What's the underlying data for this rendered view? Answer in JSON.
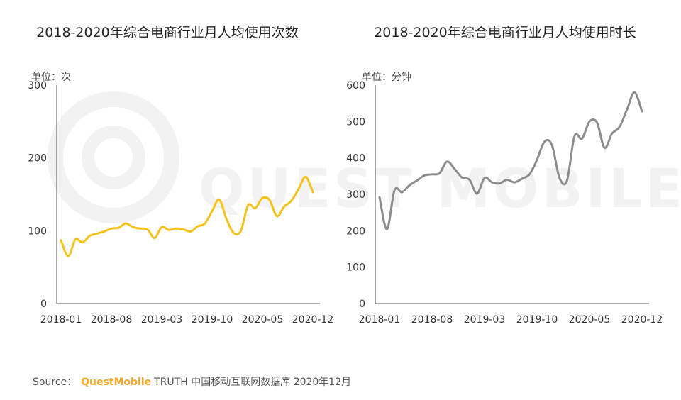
{
  "footer": {
    "source_label": "Source：",
    "brand": "QuestMobile",
    "rest": "TRUTH 中国移动互联网数据库 2020年12月"
  },
  "watermark": {
    "text": "QUEST MOBILE"
  },
  "colors": {
    "left_line": "#f5c21b",
    "right_line": "#8c8c8c",
    "axis": "#555555",
    "text": "#333333",
    "watermark": "#f2f2f2"
  },
  "chart_data": [
    {
      "type": "line",
      "title": "2018-2020年综合电商行业月人均使用次数",
      "ylabel": "单位：次",
      "xlabel": "",
      "ylim": [
        0,
        300
      ],
      "yticks": [
        0,
        100,
        200,
        300
      ],
      "xtick_labels": [
        "2018-01",
        "2018-08",
        "2019-03",
        "2019-10",
        "2020-05",
        "2020-12"
      ],
      "x": [
        "2018-01",
        "2018-02",
        "2018-03",
        "2018-04",
        "2018-05",
        "2018-06",
        "2018-07",
        "2018-08",
        "2018-09",
        "2018-10",
        "2018-11",
        "2018-12",
        "2019-01",
        "2019-02",
        "2019-03",
        "2019-04",
        "2019-05",
        "2019-06",
        "2019-07",
        "2019-08",
        "2019-09",
        "2019-10",
        "2019-11",
        "2019-12",
        "2020-01",
        "2020-02",
        "2020-03",
        "2020-04",
        "2020-05",
        "2020-06",
        "2020-07",
        "2020-08",
        "2020-09",
        "2020-10",
        "2020-11",
        "2020-12"
      ],
      "series": [
        {
          "name": "",
          "values": [
            87,
            65,
            88,
            84,
            93,
            96,
            99,
            103,
            104,
            110,
            105,
            103,
            102,
            90,
            105,
            101,
            103,
            102,
            99,
            106,
            110,
            127,
            143,
            116,
            97,
            100,
            135,
            131,
            145,
            142,
            120,
            133,
            141,
            157,
            174,
            153
          ]
        }
      ]
    },
    {
      "type": "line",
      "title": "2018-2020年综合电商行业月人均使用时长",
      "ylabel": "单位：分钟",
      "xlabel": "",
      "ylim": [
        0,
        600
      ],
      "yticks": [
        0,
        100,
        200,
        300,
        400,
        500,
        600
      ],
      "xtick_labels": [
        "2018-01",
        "2018-08",
        "2019-03",
        "2019-10",
        "2020-05",
        "2020-12"
      ],
      "x": [
        "2018-01",
        "2018-02",
        "2018-03",
        "2018-04",
        "2018-05",
        "2018-06",
        "2018-07",
        "2018-08",
        "2018-09",
        "2018-10",
        "2018-11",
        "2018-12",
        "2019-01",
        "2019-02",
        "2019-03",
        "2019-04",
        "2019-05",
        "2019-06",
        "2019-07",
        "2019-08",
        "2019-09",
        "2019-10",
        "2019-11",
        "2019-12",
        "2020-01",
        "2020-02",
        "2020-03",
        "2020-04",
        "2020-05",
        "2020-06",
        "2020-07",
        "2020-08",
        "2020-09",
        "2020-10",
        "2020-11",
        "2020-12"
      ],
      "series": [
        {
          "name": "",
          "values": [
            292,
            204,
            311,
            306,
            325,
            338,
            352,
            355,
            358,
            390,
            370,
            346,
            340,
            302,
            345,
            333,
            330,
            340,
            333,
            343,
            355,
            395,
            445,
            435,
            345,
            338,
            460,
            453,
            500,
            497,
            428,
            467,
            485,
            533,
            580,
            528
          ]
        }
      ]
    }
  ]
}
